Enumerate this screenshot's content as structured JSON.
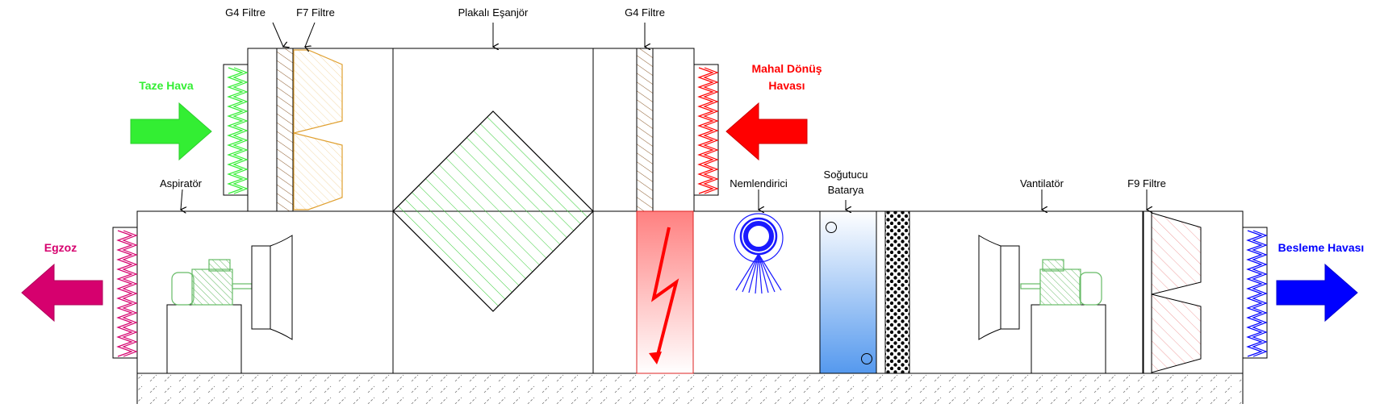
{
  "colors": {
    "fresh_air": "#33ee33",
    "return_air": "#ff0000",
    "exhaust": "#d6006e",
    "supply": "#0000ff",
    "filter_g4": "#8b5a2b",
    "filter_f7": "#e0a030",
    "filter_f9": "#ee6666",
    "exchanger": "#33cc33",
    "humidifier": "#1a1aff",
    "cooler": "#5599ee",
    "motor": "#66bb66",
    "base": "#666666",
    "outline": "#000000"
  },
  "labels": {
    "g4_filter_top_left": "G4 Filtre",
    "f7_filter": "F7 Filtre",
    "plate_exchanger": "Plakalı Eşanjör",
    "g4_filter_top_right": "G4 Filtre",
    "fresh_air": "Taze Hava",
    "return_air_line1": "Mahal Dönüş",
    "return_air_line2": "Havası",
    "aspirator": "Aspiratör",
    "humidifier": "Nemlendirici",
    "cooling_coil_line1": "Soğutucu",
    "cooling_coil_line2": "Batarya",
    "fan": "Vantilatör",
    "f9_filter": "F9 Filtre",
    "exhaust": "Egzoz",
    "supply_air": "Besleme Havası"
  },
  "icons": {
    "fresh_air_arrow": "arrow-right-icon",
    "return_air_arrow": "arrow-left-icon",
    "exhaust_arrow": "arrow-left-icon",
    "supply_arrow": "arrow-right-icon",
    "heater": "lightning-icon",
    "humidifier": "spray-nozzle-icon"
  }
}
